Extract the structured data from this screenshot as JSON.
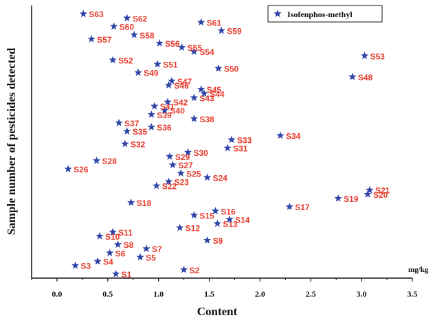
{
  "chart_data": {
    "type": "scatter",
    "xlabel": "Content",
    "ylabel": "Sample number of pesticides detected",
    "x_unit": "mg/kg",
    "xlim": [
      -0.25,
      3.5
    ],
    "ylim": [
      0,
      65
    ],
    "x_ticks": [
      "0.0",
      "0.5",
      "1.0",
      "1.5",
      "2.0",
      "2.5",
      "3.0",
      "3.5"
    ],
    "grid": false,
    "legend_position": "top-right",
    "marker_color": "#2f44a8",
    "label_color": "#e8392a",
    "series": [
      {
        "name": "Isofenphos-methyl",
        "points": [
          {
            "label": "S1",
            "x": 0.58,
            "y": 1
          },
          {
            "label": "S2",
            "x": 1.25,
            "y": 2
          },
          {
            "label": "S3",
            "x": 0.18,
            "y": 3
          },
          {
            "label": "S4",
            "x": 0.4,
            "y": 4
          },
          {
            "label": "S5",
            "x": 0.82,
            "y": 5
          },
          {
            "label": "S6",
            "x": 0.52,
            "y": 6
          },
          {
            "label": "S7",
            "x": 0.88,
            "y": 7
          },
          {
            "label": "S8",
            "x": 0.6,
            "y": 8
          },
          {
            "label": "S9",
            "x": 1.48,
            "y": 9
          },
          {
            "label": "S10",
            "x": 0.42,
            "y": 10
          },
          {
            "label": "S11",
            "x": 0.55,
            "y": 11
          },
          {
            "label": "S12",
            "x": 1.21,
            "y": 12
          },
          {
            "label": "S13",
            "x": 1.58,
            "y": 13
          },
          {
            "label": "S14",
            "x": 1.7,
            "y": 14
          },
          {
            "label": "S15",
            "x": 1.35,
            "y": 15
          },
          {
            "label": "S16",
            "x": 1.56,
            "y": 16
          },
          {
            "label": "S17",
            "x": 2.29,
            "y": 17
          },
          {
            "label": "S18",
            "x": 0.73,
            "y": 18
          },
          {
            "label": "S19",
            "x": 2.77,
            "y": 19
          },
          {
            "label": "S20",
            "x": 3.06,
            "y": 20
          },
          {
            "label": "S21",
            "x": 3.08,
            "y": 21
          },
          {
            "label": "S22",
            "x": 0.98,
            "y": 22
          },
          {
            "label": "S23",
            "x": 1.1,
            "y": 23
          },
          {
            "label": "S24",
            "x": 1.48,
            "y": 24
          },
          {
            "label": "S25",
            "x": 1.22,
            "y": 25
          },
          {
            "label": "S26",
            "x": 0.11,
            "y": 26
          },
          {
            "label": "S27",
            "x": 1.14,
            "y": 27
          },
          {
            "label": "S28",
            "x": 0.39,
            "y": 28
          },
          {
            "label": "S29",
            "x": 1.11,
            "y": 29
          },
          {
            "label": "S30",
            "x": 1.29,
            "y": 30
          },
          {
            "label": "S31",
            "x": 1.68,
            "y": 31
          },
          {
            "label": "S32",
            "x": 0.67,
            "y": 32
          },
          {
            "label": "S33",
            "x": 1.72,
            "y": 33
          },
          {
            "label": "S34",
            "x": 2.2,
            "y": 34
          },
          {
            "label": "S35",
            "x": 0.69,
            "y": 35
          },
          {
            "label": "S36",
            "x": 0.93,
            "y": 36
          },
          {
            "label": "S37",
            "x": 0.61,
            "y": 37
          },
          {
            "label": "S38",
            "x": 1.35,
            "y": 38
          },
          {
            "label": "S39",
            "x": 0.93,
            "y": 39
          },
          {
            "label": "S40",
            "x": 1.06,
            "y": 40
          },
          {
            "label": "S41",
            "x": 0.96,
            "y": 41
          },
          {
            "label": "S42",
            "x": 1.09,
            "y": 42
          },
          {
            "label": "S43",
            "x": 1.35,
            "y": 43
          },
          {
            "label": "S44",
            "x": 1.45,
            "y": 44
          },
          {
            "label": "S45",
            "x": 1.42,
            "y": 45
          },
          {
            "label": "S46",
            "x": 1.1,
            "y": 46
          },
          {
            "label": "S47",
            "x": 1.13,
            "y": 47
          },
          {
            "label": "S48",
            "x": 2.91,
            "y": 48
          },
          {
            "label": "S49",
            "x": 0.8,
            "y": 49
          },
          {
            "label": "S50",
            "x": 1.59,
            "y": 50
          },
          {
            "label": "S51",
            "x": 0.99,
            "y": 51
          },
          {
            "label": "S52",
            "x": 0.55,
            "y": 52
          },
          {
            "label": "S53",
            "x": 3.03,
            "y": 53
          },
          {
            "label": "S54",
            "x": 1.35,
            "y": 54
          },
          {
            "label": "S55",
            "x": 1.23,
            "y": 55
          },
          {
            "label": "S56",
            "x": 1.01,
            "y": 56
          },
          {
            "label": "S57",
            "x": 0.34,
            "y": 57
          },
          {
            "label": "S58",
            "x": 0.76,
            "y": 58
          },
          {
            "label": "S59",
            "x": 1.62,
            "y": 59
          },
          {
            "label": "S60",
            "x": 0.56,
            "y": 60
          },
          {
            "label": "S61",
            "x": 1.42,
            "y": 61
          },
          {
            "label": "S62",
            "x": 0.69,
            "y": 62
          },
          {
            "label": "S63",
            "x": 0.26,
            "y": 63
          }
        ]
      }
    ]
  }
}
